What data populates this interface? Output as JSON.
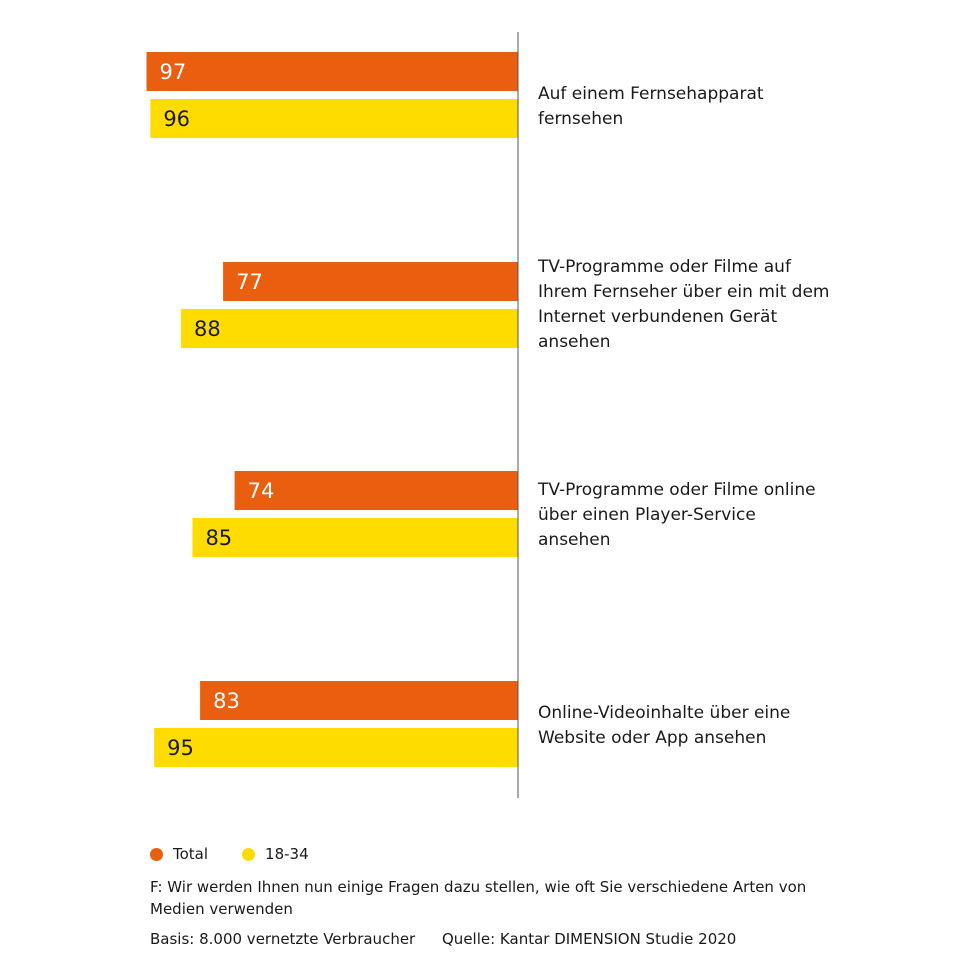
{
  "chart_data": {
    "type": "bar",
    "orientation": "horizontal",
    "categories": [
      "Auf einem Fernsehapparat fernsehen",
      "TV-Programme oder Filme auf Ihrem Fernseher über ein mit dem Internet verbundenen Gerät ansehen",
      "TV-Programme oder Filme online über einen Player-Service ansehen",
      "Online-Videoinhalte über eine Website oder App ansehen"
    ],
    "series": [
      {
        "name": "Total",
        "values": [
          97,
          77,
          74,
          83
        ],
        "color": "#E95E0F"
      },
      {
        "name": "18-34",
        "values": [
          96,
          88,
          85,
          95
        ],
        "color": "#FFDC00"
      }
    ],
    "xlim": [
      0,
      100
    ],
    "grid": false,
    "legend": "bottom-left"
  },
  "footer": {
    "question": "F:  Wir werden Ihnen nun einige Fragen dazu stellen, wie oft Sie verschiedene Arten von Medien verwenden",
    "basis": "Basis: 8.000 vernetzte Verbraucher",
    "source": "Quelle: Kantar DIMENSION Studie 2020"
  }
}
